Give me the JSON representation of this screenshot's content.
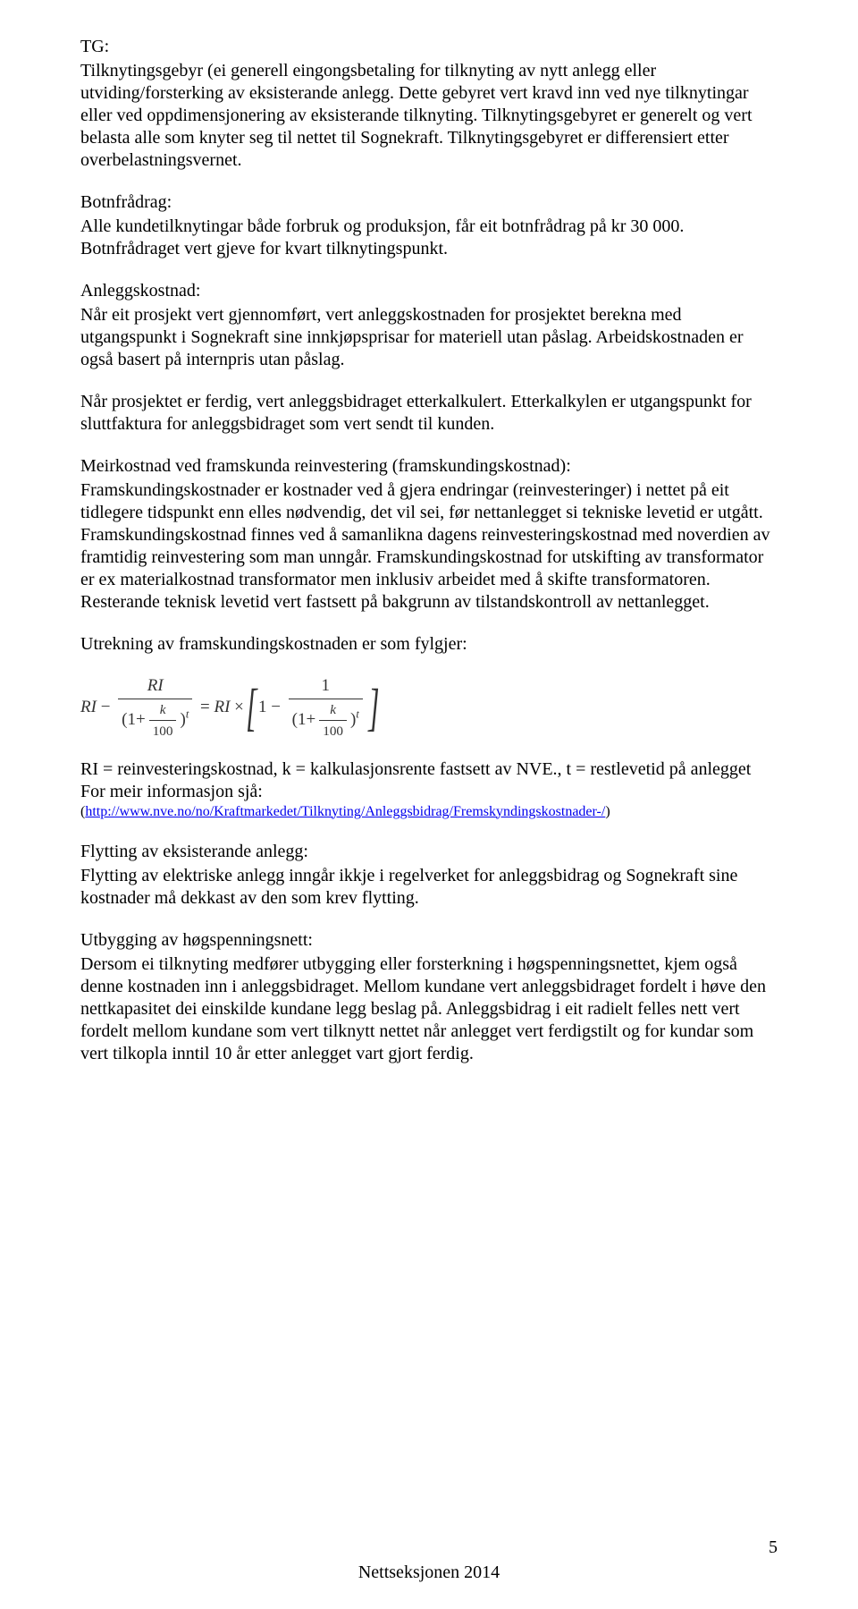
{
  "tg": {
    "heading": "TG:",
    "body": "Tilknytingsgebyr (ei generell eingongsbetaling for tilknyting av nytt anlegg eller utviding/forsterking av eksisterande anlegg. Dette gebyret vert kravd inn ved nye tilknytingar eller ved oppdimensjonering av eksisterande tilknyting. Tilknytingsgebyret er generelt og vert belasta alle som knyter seg til nettet til Sognekraft. Tilknytingsgebyret er differensiert etter overbelastningsvernet."
  },
  "botnfradrag": {
    "heading": "Botnfrådrag:",
    "body": "Alle kundetilknytingar både forbruk og produksjon, får eit botnfrådrag på kr 30 000. Botnfrådraget vert gjeve for kvart tilknytingspunkt."
  },
  "anleggskostnad": {
    "heading": "Anleggskostnad:",
    "body1": "Når eit prosjekt vert gjennomført, vert anleggskostnaden for prosjektet berekna med utgangspunkt i Sognekraft sine innkjøpsprisar for materiell utan påslag. Arbeidskostnaden er også basert på internpris utan påslag.",
    "body2": "Når prosjektet er ferdig, vert anleggsbidraget etterkalkulert. Etterkalkylen er utgangspunkt for sluttfaktura for anleggsbidraget som vert sendt til kunden."
  },
  "meirkostnad": {
    "heading": "Meirkostnad ved framskunda reinvestering (framskundingskostnad):",
    "body1": "Framskundingskostnader er kostnader ved å gjera endringar (reinvesteringer) i nettet på eit tidlegere tidspunkt enn elles nødvendig, det vil sei, før nettanlegget si tekniske levetid er utgått. Framskundingskostnad finnes ved å samanlikna dagens reinvesteringskostnad med noverdien av framtidig reinvestering som man unngår. Framskundingskostnad for utskifting av transformator er ex materialkostnad transformator men inklusiv arbeidet med å skifte transformatoren. Resterande teknisk levetid vert fastsett på bakgrunn av tilstandskontroll av nettanlegget.",
    "intro": "Utrekning av framskundingskostnaden er som fylgjer:",
    "definitions": "RI = reinvesteringskostnad, k = kalkulasjonsrente fastsett av NVE., t = restlevetid på anlegget",
    "moreinfo": "For meir informasjon sjå:",
    "link_open": "(",
    "link_text": "http://www.nve.no/no/Kraftmarkedet/Tilknyting/Anleggsbidrag/Fremskyndingskostnader-/",
    "link_close": ")"
  },
  "flytting": {
    "heading": "Flytting av eksisterande anlegg:",
    "body": "Flytting av elektriske anlegg inngår ikkje i regelverket for anleggsbidrag og Sognekraft sine kostnader må dekkast av den som krev flytting."
  },
  "utbygging": {
    "heading": "Utbygging av høgspenningsnett:",
    "body": "Dersom ei tilknyting medfører utbygging eller forsterkning i høgspenningsnettet, kjem også denne kostnaden inn i anleggsbidraget. Mellom kundane vert anleggsbidraget fordelt i høve den nettkapasitet dei einskilde kundane legg beslag på. Anleggsbidrag i eit radielt felles nett vert fordelt mellom kundane som vert tilknytt nettet når anlegget vert ferdigstilt og for kundar som vert tilkopla inntil 10 år etter anlegget vart gjort ferdig."
  },
  "formula": {
    "text_plain": "RI − RI / (1 + k/100)^t = RI × [ 1 − 1 / (1 + k/100)^t ]"
  },
  "footer": {
    "text": "Nettseksjonen 2014",
    "page_number": "5"
  },
  "colors": {
    "text": "#000000",
    "link": "#0000ee",
    "background": "#ffffff"
  }
}
